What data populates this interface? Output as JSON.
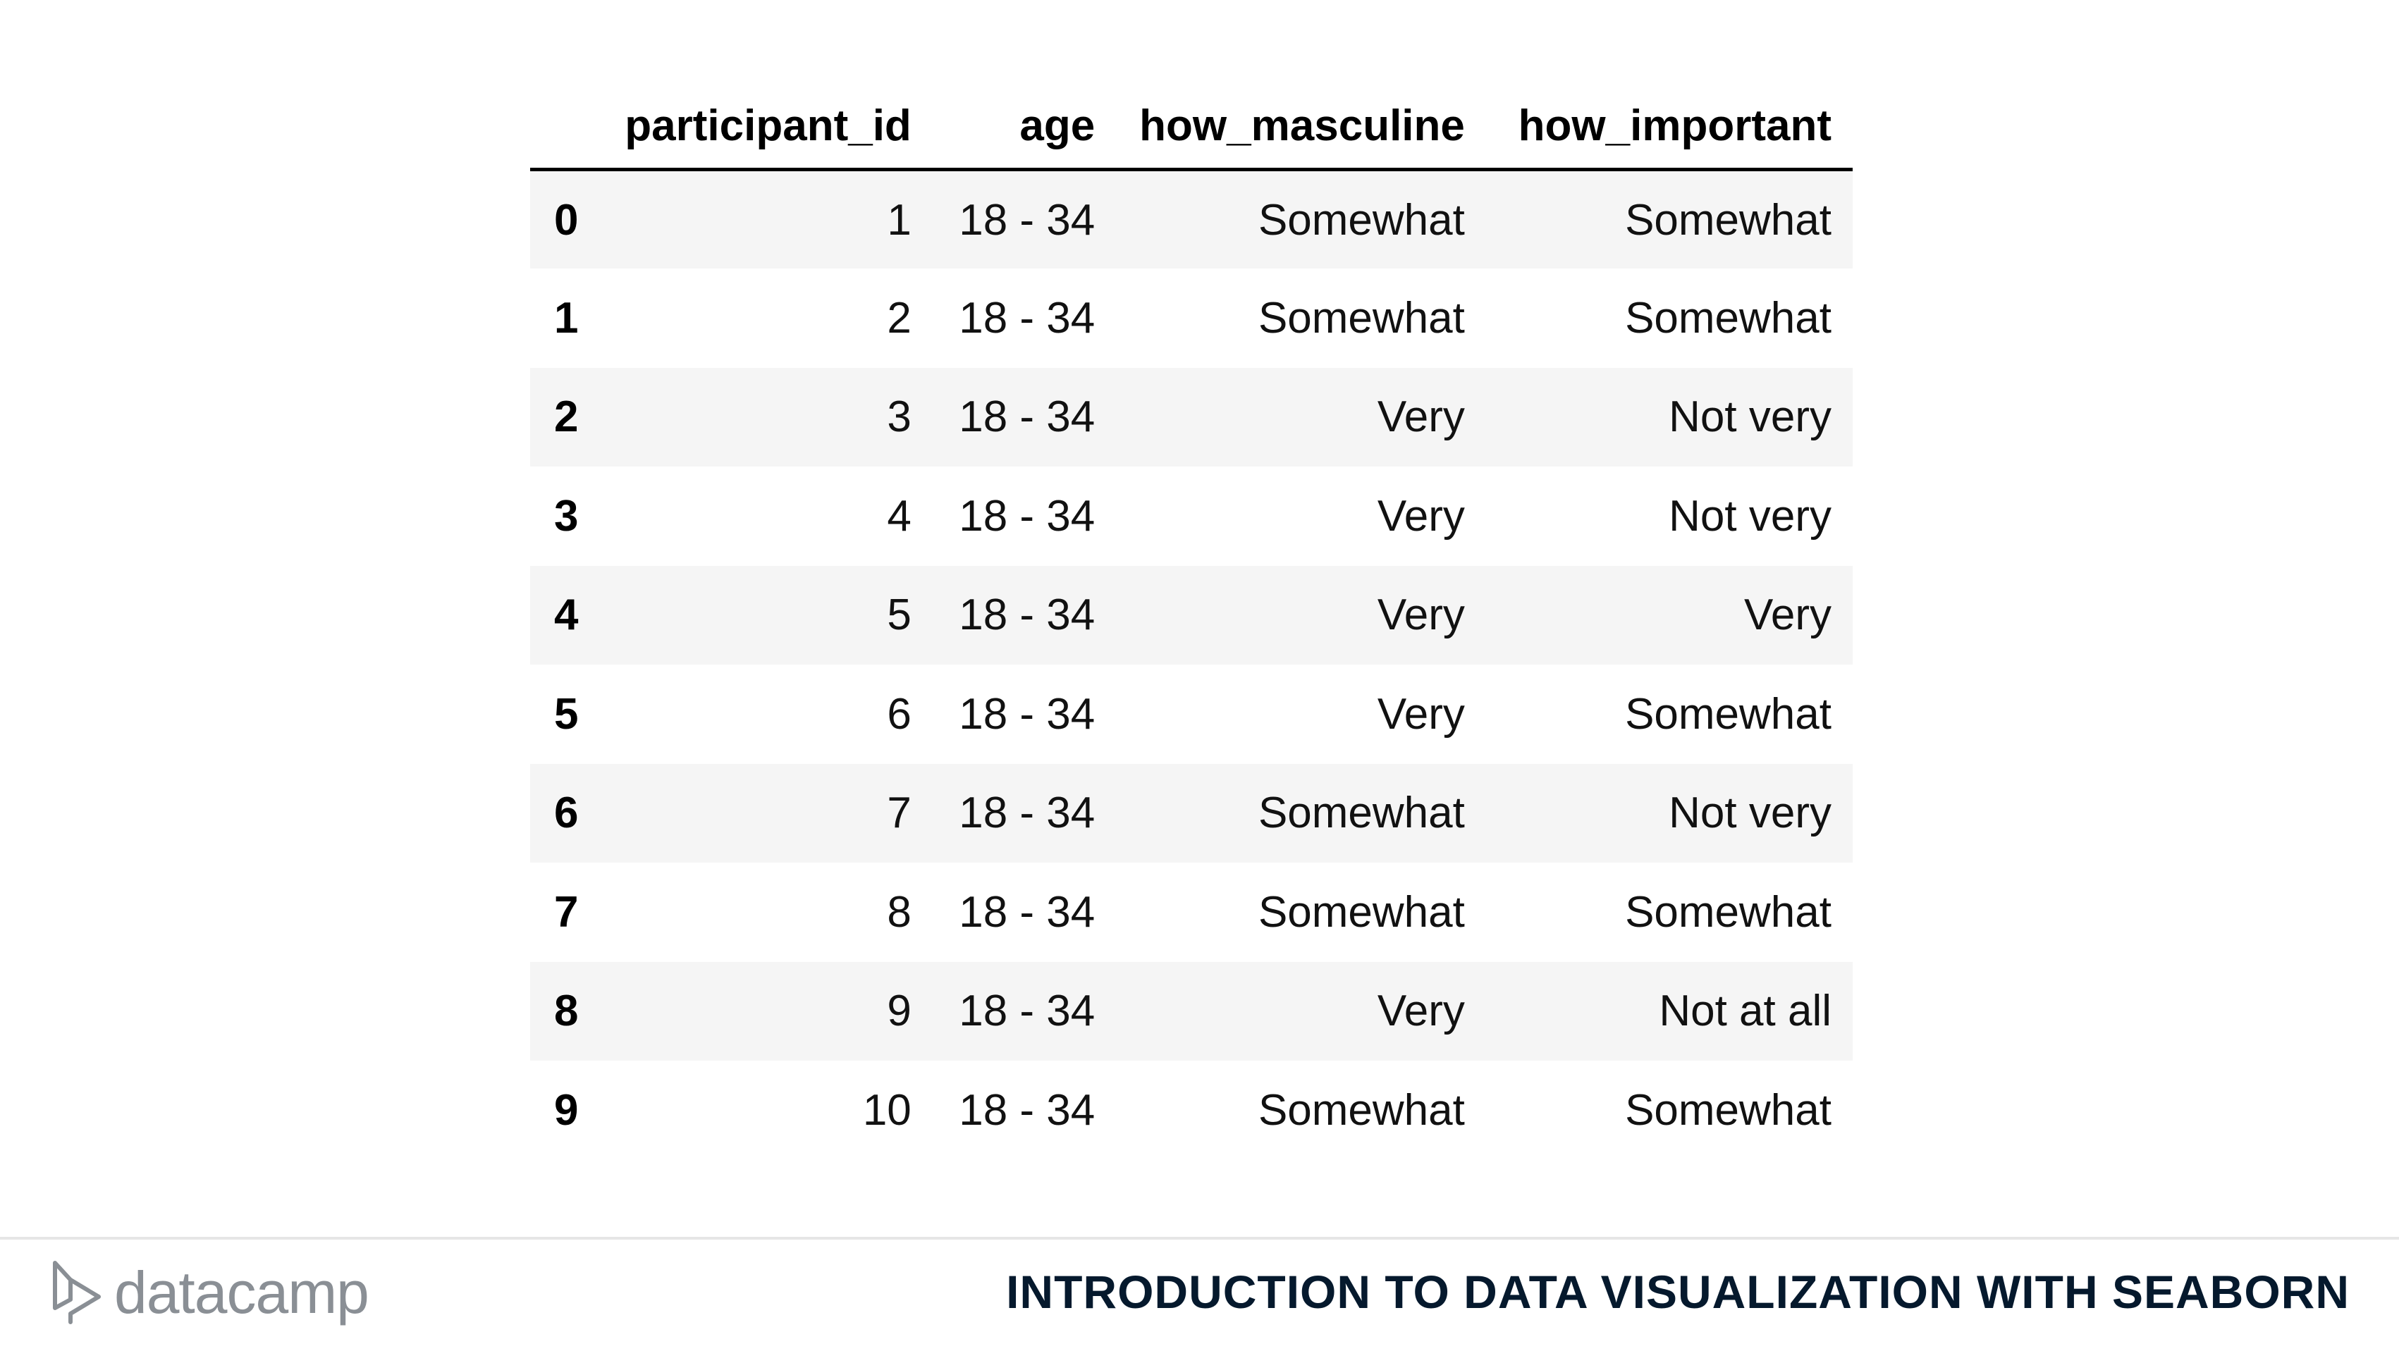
{
  "table": {
    "columns": [
      "",
      "participant_id",
      "age",
      "how_masculine",
      "how_important"
    ],
    "rows": [
      {
        "index": "0",
        "participant_id": "1",
        "age": "18 - 34",
        "how_masculine": "Somewhat",
        "how_important": "Somewhat"
      },
      {
        "index": "1",
        "participant_id": "2",
        "age": "18 - 34",
        "how_masculine": "Somewhat",
        "how_important": "Somewhat"
      },
      {
        "index": "2",
        "participant_id": "3",
        "age": "18 - 34",
        "how_masculine": "Very",
        "how_important": "Not very"
      },
      {
        "index": "3",
        "participant_id": "4",
        "age": "18 - 34",
        "how_masculine": "Very",
        "how_important": "Not very"
      },
      {
        "index": "4",
        "participant_id": "5",
        "age": "18 - 34",
        "how_masculine": "Very",
        "how_important": "Very"
      },
      {
        "index": "5",
        "participant_id": "6",
        "age": "18 - 34",
        "how_masculine": "Very",
        "how_important": "Somewhat"
      },
      {
        "index": "6",
        "participant_id": "7",
        "age": "18 - 34",
        "how_masculine": "Somewhat",
        "how_important": "Not very"
      },
      {
        "index": "7",
        "participant_id": "8",
        "age": "18 - 34",
        "how_masculine": "Somewhat",
        "how_important": "Somewhat"
      },
      {
        "index": "8",
        "participant_id": "9",
        "age": "18 - 34",
        "how_masculine": "Very",
        "how_important": "Not at all"
      },
      {
        "index": "9",
        "participant_id": "10",
        "age": "18 - 34",
        "how_masculine": "Somewhat",
        "how_important": "Somewhat"
      }
    ]
  },
  "footer": {
    "brand_name": "datacamp",
    "brand_icon": "datacamp-logo-icon",
    "course_title": "INTRODUCTION TO DATA VISUALIZATION WITH SEABORN"
  },
  "colors": {
    "row_stripe": "#f5f5f5",
    "brand_gray": "#8a8f95",
    "title_navy": "#05192d"
  }
}
